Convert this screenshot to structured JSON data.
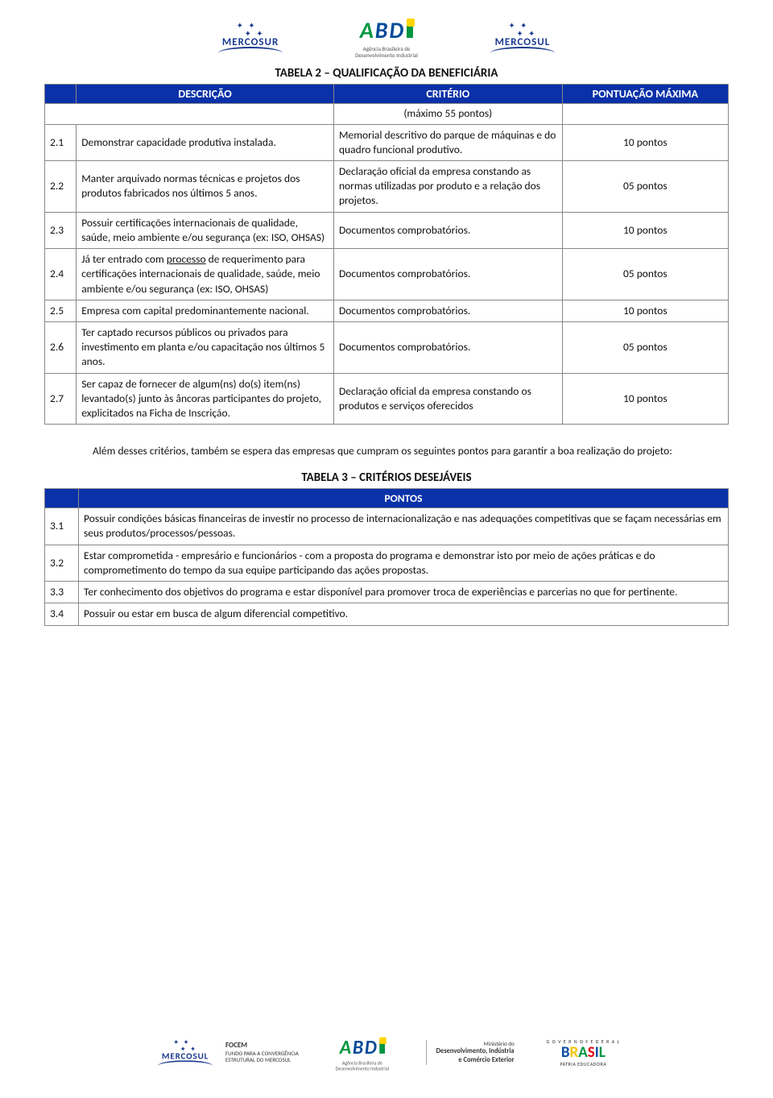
{
  "header": {
    "mercosur": "MERCOSUR",
    "mercosul": "MERCOSUL",
    "abdi_sub_line1": "Agência Brasileira de",
    "abdi_sub_line2": "Desenvolvimento Industrial"
  },
  "table2": {
    "title": "TABELA 2 – QUALIFICAÇÃO DA BENEFICIÁRIA",
    "headers": {
      "desc": "DESCRIÇÃO",
      "crit": "CRITÉRIO",
      "pts": "PONTUAÇÃO MÁXIMA"
    },
    "subhead": "(máximo 55 pontos)",
    "rows": [
      {
        "n": "2.1",
        "desc_before": "Demonstrar capacidade produtiva instalada.",
        "crit": "Memorial descritivo do parque de máquinas e do quadro funcional produtivo.",
        "pts": "10 pontos"
      },
      {
        "n": "2.2",
        "desc_before": "Manter arquivado normas técnicas e projetos dos produtos fabricados nos últimos 5 anos.",
        "crit": "Declaração oficial da empresa constando as normas utilizadas por produto e a relação dos projetos.",
        "pts": "05 pontos"
      },
      {
        "n": "2.3",
        "desc_before": "Possuir certificações internacionais de qualidade, saúde, meio ambiente e/ou segurança (ex: ISO, OHSAS)",
        "crit": "Documentos comprobatórios.",
        "pts": "10 pontos"
      },
      {
        "n": "2.4",
        "desc_before": "Já ter entrado com ",
        "desc_u": "processo",
        "desc_after": " de requerimento para certificações internacionais de qualidade, saúde, meio ambiente e/ou segurança (ex: ISO, OHSAS)",
        "crit": "Documentos comprobatórios.",
        "pts": "05 pontos"
      },
      {
        "n": "2.5",
        "desc_before": "Empresa com capital predominantemente nacional.",
        "crit": "Documentos comprobatórios.",
        "pts": "10 pontos"
      },
      {
        "n": "2.6",
        "desc_before": "Ter captado recursos públicos ou privados para investimento em planta e/ou capacitação nos últimos 5 anos.",
        "crit": "Documentos comprobatórios.",
        "pts": "05 pontos"
      },
      {
        "n": "2.7",
        "desc_before": "Ser capaz de fornecer de algum(ns) do(s) item(ns) levantado(s) junto às âncoras participantes do projeto, explicitados na Ficha de Inscrição.",
        "crit": "Declaração oficial da empresa constando os produtos e serviços oferecidos",
        "pts": "10 pontos"
      }
    ]
  },
  "paragraph": "Além desses critérios, também se espera das empresas que cumpram os seguintes pontos para garantir a boa realização do projeto:",
  "table3": {
    "title": "TABELA 3 – CRITÉRIOS DESEJÁVEIS",
    "header": "PONTOS",
    "rows": [
      {
        "n": "3.1",
        "text": "Possuir condições básicas financeiras de investir no processo de internacionalização e nas adequações competitivas que se façam necessárias em seus produtos/processos/pessoas."
      },
      {
        "n": "3.2",
        "text": "Estar comprometida - empresário e funcionários - com a proposta do programa e demonstrar isto por meio de ações práticas e do comprometimento do tempo da sua equipe participando das ações propostas."
      },
      {
        "n": "3.3",
        "text": "Ter conhecimento dos objetivos do programa e estar disponível para promover troca de experiências e parcerias no que for pertinente."
      },
      {
        "n": "3.4",
        "text": "Possuir ou estar em busca de algum diferencial competitivo."
      }
    ]
  },
  "footer": {
    "focem_title": "FOCEM",
    "focem_line1": "FUNDO PARA A CONVERGÊNCIA",
    "focem_line2": "ESTRUTURAL DO MERCOSUL",
    "ministerio_line1": "Ministério do",
    "ministerio_line2": "Desenvolvimento, Indústria",
    "ministerio_line3": "e Comércio Exterior",
    "brasil_top": "G O V E R N O   F E D E R A L",
    "brasil_sub": "PÁTRIA EDUCADORA"
  }
}
